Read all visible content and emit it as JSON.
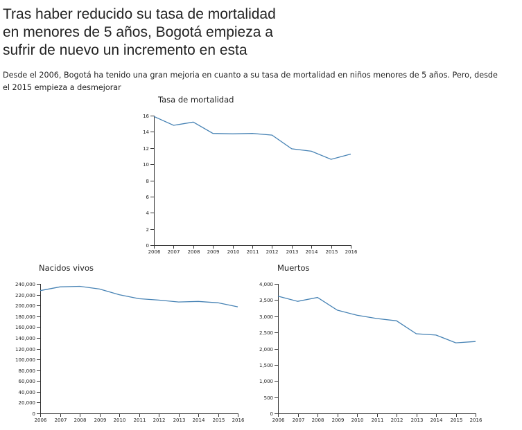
{
  "page": {
    "title": "Tras haber reducido su tasa de mortalidad\nen menores de 5 años, Bogotá empieza a\nsufrir de nuevo un incremento en esta",
    "subtitle": "Desde el 2006, Bogotá ha tenido una gran mejoria en cuanto a su tasa de mortalidad en niños menores de 5 años. Pero, desde el 2015 empieza a desmejorar"
  },
  "chart_data": [
    {
      "type": "line",
      "title": "Tasa de mortalidad",
      "x": [
        2006,
        2007,
        2008,
        2009,
        2010,
        2011,
        2012,
        2013,
        2014,
        2015,
        2016
      ],
      "values": [
        15.9,
        14.8,
        15.2,
        13.8,
        13.75,
        13.8,
        13.6,
        11.9,
        11.6,
        10.6,
        11.25
      ],
      "ylim": [
        0,
        16
      ],
      "yticks": [
        0,
        2,
        4,
        6,
        8,
        10,
        12,
        14,
        16
      ],
      "ytick_labels": [
        "0",
        "2",
        "4",
        "6",
        "8",
        "10",
        "12",
        "14",
        "16"
      ],
      "color": "#4682b4"
    },
    {
      "type": "line",
      "title": "Nacidos vivos",
      "x": [
        2006,
        2007,
        2008,
        2009,
        2010,
        2011,
        2012,
        2013,
        2014,
        2015,
        2016
      ],
      "values": [
        227500,
        234500,
        235500,
        230500,
        220000,
        212500,
        210000,
        206500,
        207500,
        205000,
        197500
      ],
      "ylim": [
        0,
        240000
      ],
      "yticks": [
        0,
        20000,
        40000,
        60000,
        80000,
        100000,
        120000,
        140000,
        160000,
        180000,
        200000,
        220000,
        240000
      ],
      "ytick_labels": [
        "0",
        "20,000",
        "40,000",
        "60,000",
        "80,000",
        "100,000",
        "120,000",
        "140,000",
        "160,000",
        "180,000",
        "200,000",
        "220,000",
        "240,000"
      ],
      "color": "#4682b4"
    },
    {
      "type": "line",
      "title": "Muertos",
      "x": [
        2006,
        2007,
        2008,
        2009,
        2010,
        2011,
        2012,
        2013,
        2014,
        2015,
        2016
      ],
      "values": [
        3620,
        3460,
        3580,
        3190,
        3030,
        2930,
        2860,
        2460,
        2420,
        2180,
        2220
      ],
      "ylim": [
        0,
        4000
      ],
      "yticks": [
        0,
        500,
        1000,
        1500,
        2000,
        2500,
        3000,
        3500,
        4000
      ],
      "ytick_labels": [
        "0",
        "500",
        "1,000",
        "1,500",
        "2,000",
        "2,500",
        "3,000",
        "3,500",
        "4,000"
      ],
      "color": "#4682b4"
    }
  ]
}
